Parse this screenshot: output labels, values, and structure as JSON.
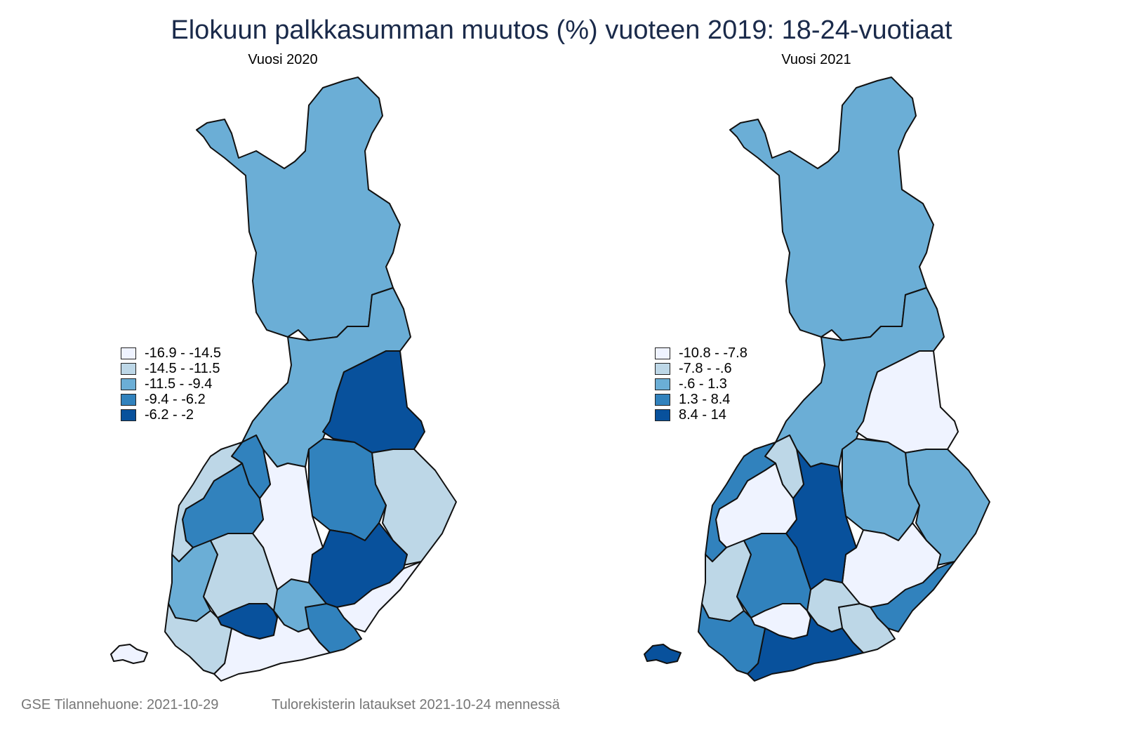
{
  "title": "Elokuun palkkasumman muutos (%) vuoteen 2019: 18-24-vuotiaat",
  "palette": [
    "#eff3ff",
    "#bdd7e7",
    "#6baed6",
    "#3182bd",
    "#08519c"
  ],
  "maps": [
    {
      "subtitle": "Vuosi 2020",
      "legend": [
        "-16.9  -  -14.5",
        "-14.5  -  -11.5",
        "-11.5  -  -9.4",
        "-9.4  -  -6.2",
        "-6.2  -  -2"
      ],
      "region_classes": [
        2,
        2,
        4,
        1,
        3,
        4,
        0,
        3,
        2,
        0,
        3,
        3,
        1,
        2,
        1,
        4,
        0,
        1,
        0
      ]
    },
    {
      "subtitle": "Vuosi 2021",
      "legend": [
        "-10.8  -  -7.8",
        "-7.8  -  -.6",
        "-.6  -  1.3",
        "1.3  -  8.4",
        "8.4  -  14"
      ],
      "region_classes": [
        2,
        2,
        0,
        2,
        2,
        0,
        3,
        1,
        1,
        4,
        1,
        0,
        3,
        1,
        3,
        0,
        4,
        3,
        4
      ]
    }
  ],
  "footer": {
    "left": "GSE Tilannehuone: 2021-10-29",
    "right": "Tulorekisterin lataukset 2021-10-24 mennessä"
  }
}
